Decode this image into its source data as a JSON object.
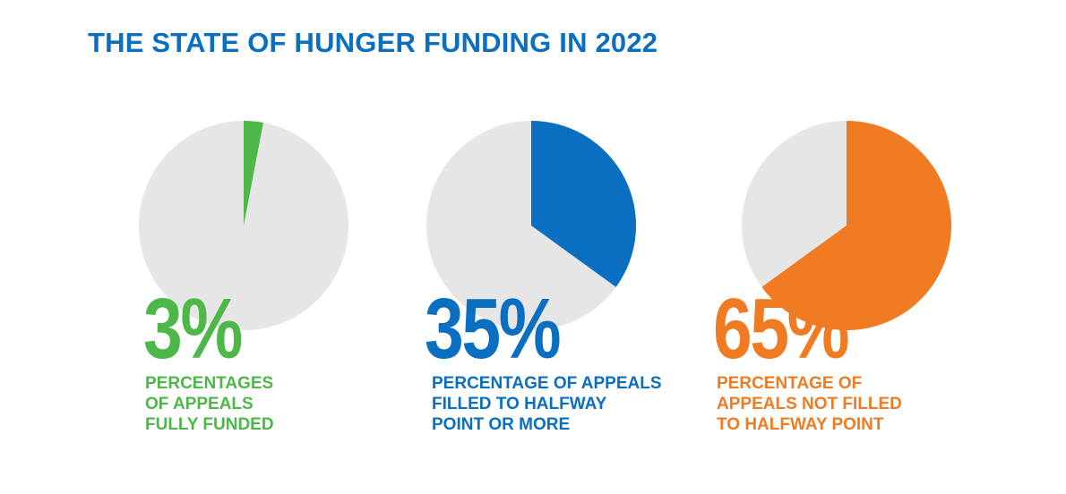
{
  "title": "THE STATE OF HUNGER FUNDING IN 2022",
  "colors": {
    "title": "#0a6fc0",
    "background_slice": "#e6e6e6"
  },
  "chart_data": {
    "type": "pie",
    "title": "THE STATE OF HUNGER FUNDING IN 2022",
    "charts": [
      {
        "name": "fully-funded",
        "value": 3,
        "display": "3%",
        "color": "#4db848",
        "description_lines": [
          "PERCENTAGES",
          "OF APPEALS",
          "FULLY FUNDED"
        ],
        "slice_start": "12 o'clock clockwise"
      },
      {
        "name": "halfway-or-more",
        "value": 35,
        "display": "35%",
        "color": "#0a6fc0",
        "description_lines": [
          "PERCENTAGE OF APPEALS",
          "FILLED TO HALFWAY",
          "POINT OR MORE"
        ],
        "slice_start": "12 o'clock clockwise"
      },
      {
        "name": "not-halfway",
        "value": 65,
        "display": "65%",
        "color": "#f07b22",
        "description_lines": [
          "PERCENTAGE OF",
          "APPEALS NOT FILLED",
          "TO HALFWAY POINT"
        ],
        "slice_start": "12 o'clock clockwise"
      }
    ]
  }
}
